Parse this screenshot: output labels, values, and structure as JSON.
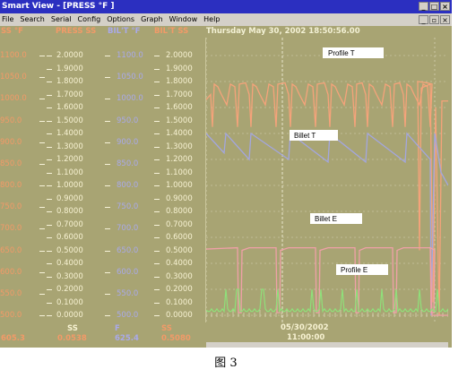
{
  "window": {
    "title": "Smart View - [PRESS °F ]",
    "menu": [
      "File",
      "Search",
      "Serial",
      "Config",
      "Options",
      "Graph",
      "Window",
      "Help"
    ]
  },
  "headers": {
    "col1": "SS °F",
    "col2": "PRESS SS",
    "col3": "BIL'T °F",
    "col4": "BIL'T SS"
  },
  "datetime": "Thursday May 30, 2002 18:50:56.00",
  "scales": {
    "col1": [
      "1100.0",
      "1050.0",
      "1000.0",
      "950.0",
      "900.0",
      "850.0",
      "800.0",
      "750.0",
      "700.0",
      "650.0",
      "600.0",
      "550.0",
      "500.0"
    ],
    "col2": [
      "2.0000",
      "1.9000",
      "1.8000",
      "1.7000",
      "1.6000",
      "1.5000",
      "1.4000",
      "1.3000",
      "1.2000",
      "1.1000",
      "1.0000",
      "0.9000",
      "0.8000",
      "0.7000",
      "0.6000",
      "0.5000",
      "0.4000",
      "0.3000",
      "0.2000",
      "0.1000",
      "0.0000"
    ],
    "col3": [
      "1100.0",
      "1050.0",
      "1000.0",
      "950.0",
      "900.0",
      "850.0",
      "800.0",
      "750.0",
      "700.0",
      "650.0",
      "600.0",
      "550.0",
      "500.0"
    ],
    "col4": [
      "2.0000",
      "1.9000",
      "1.8000",
      "1.7000",
      "1.6000",
      "1.5000",
      "1.4000",
      "1.3000",
      "1.2000",
      "1.1000",
      "1.0000",
      "0.9000",
      "0.8000",
      "0.7000",
      "0.6000",
      "0.5000",
      "0.4000",
      "0.3000",
      "0.2000",
      "0.1000",
      "0.0000"
    ]
  },
  "legend_labels": {
    "profile_t": "Profile T",
    "billet_t": "Billet T",
    "billet_e": "Billet E",
    "profile_e": "Profile E"
  },
  "footer": {
    "label_ss": "SS",
    "label_f": "F",
    "label_ss2": "SS",
    "value1": "605.3",
    "value2": "0.0538",
    "value3": "625.4",
    "value4": "0.5080",
    "date": "05/30/2002",
    "time": "11:00:00"
  },
  "colors": {
    "background": "#a8a473",
    "profile_t": "#f5a37a",
    "billet_t": "#a3a6df",
    "billet_e": "#f0a0a8",
    "profile_e": "#8fe07a"
  },
  "caption": "图 3"
}
